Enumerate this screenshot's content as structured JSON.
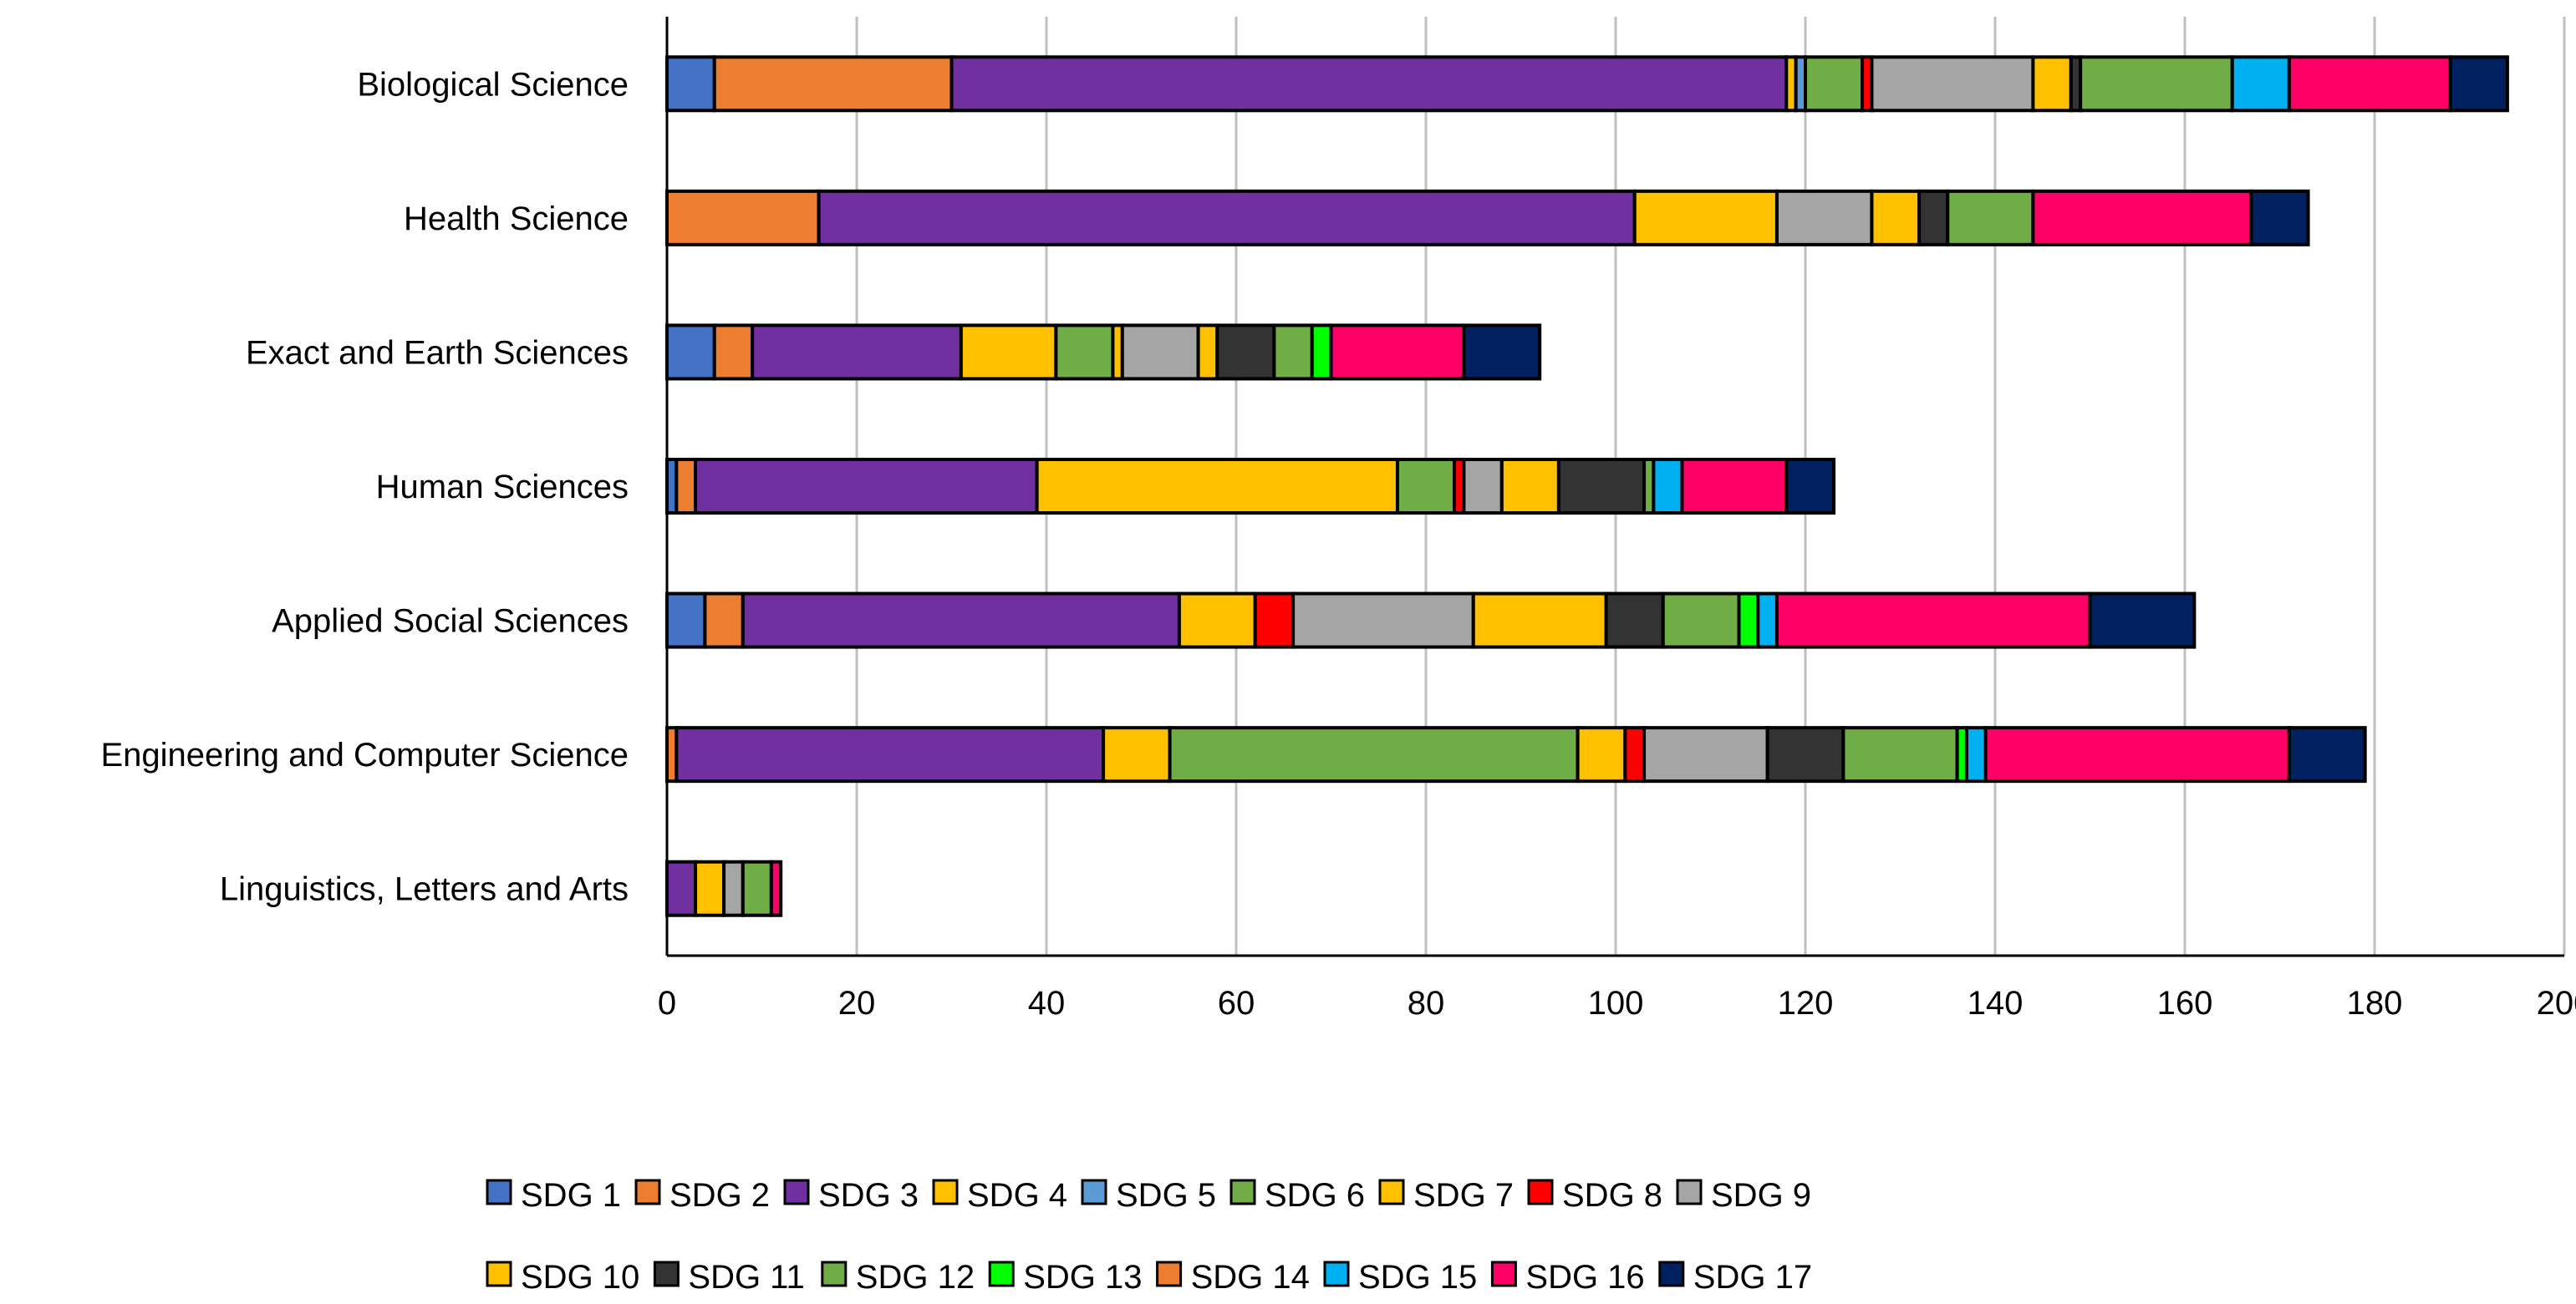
{
  "chart_data": {
    "type": "bar",
    "orientation": "horizontal",
    "stacked": true,
    "title": "",
    "xlabel": "",
    "ylabel": "",
    "xlim": [
      0,
      200
    ],
    "xticks": [
      0,
      20,
      40,
      60,
      80,
      100,
      120,
      140,
      160,
      180,
      200
    ],
    "grid": "vertical",
    "legend_position": "bottom",
    "categories": [
      "Biological Science",
      "Health Science",
      "Exact and Earth Sciences",
      "Human Sciences",
      "Applied Social Sciences",
      "Engineering and Computer Science",
      "Linguistics, Letters and Arts"
    ],
    "series": [
      {
        "name": "SDG 1",
        "color": "#4472C4",
        "values": [
          5,
          0,
          5,
          1,
          4,
          0,
          0
        ]
      },
      {
        "name": "SDG 2",
        "color": "#ED7D31",
        "values": [
          25,
          16,
          4,
          2,
          4,
          1,
          0
        ]
      },
      {
        "name": "SDG 3",
        "color": "#7030A0",
        "values": [
          88,
          86,
          22,
          36,
          46,
          45,
          3
        ]
      },
      {
        "name": "SDG 4",
        "color": "#FFC000",
        "values": [
          1,
          15,
          10,
          38,
          8,
          7,
          3
        ]
      },
      {
        "name": "SDG 5",
        "color": "#5B9BD5",
        "values": [
          1,
          0,
          0,
          0,
          0,
          0,
          0
        ]
      },
      {
        "name": "SDG 6",
        "color": "#70AD47",
        "values": [
          6,
          0,
          6,
          6,
          0,
          43,
          0
        ]
      },
      {
        "name": "SDG 7",
        "color": "#FFC000",
        "values": [
          0,
          0,
          1,
          0,
          0,
          5,
          0
        ]
      },
      {
        "name": "SDG 8",
        "color": "#FF0000",
        "values": [
          1,
          0,
          0,
          1,
          4,
          2,
          0
        ]
      },
      {
        "name": "SDG 9",
        "color": "#A5A5A5",
        "values": [
          17,
          10,
          8,
          4,
          19,
          13,
          2
        ]
      },
      {
        "name": "SDG 10",
        "color": "#FFC000",
        "values": [
          4,
          5,
          2,
          6,
          14,
          0,
          0
        ]
      },
      {
        "name": "SDG 11",
        "color": "#333333",
        "values": [
          1,
          3,
          6,
          9,
          6,
          8,
          0
        ]
      },
      {
        "name": "SDG 12",
        "color": "#70AD47",
        "values": [
          16,
          9,
          4,
          1,
          8,
          12,
          3
        ]
      },
      {
        "name": "SDG 13",
        "color": "#00FF00",
        "values": [
          0,
          0,
          2,
          0,
          2,
          1,
          0
        ]
      },
      {
        "name": "SDG 14",
        "color": "#ED7D31",
        "values": [
          0,
          0,
          0,
          0,
          0,
          0,
          0
        ]
      },
      {
        "name": "SDG 15",
        "color": "#00B0F0",
        "values": [
          6,
          0,
          0,
          3,
          2,
          2,
          0
        ]
      },
      {
        "name": "SDG 16",
        "color": "#FF0066",
        "values": [
          17,
          23,
          14,
          11,
          33,
          32,
          1
        ]
      },
      {
        "name": "SDG 17",
        "color": "#002060",
        "values": [
          6,
          6,
          8,
          5,
          11,
          8,
          0
        ]
      }
    ]
  }
}
